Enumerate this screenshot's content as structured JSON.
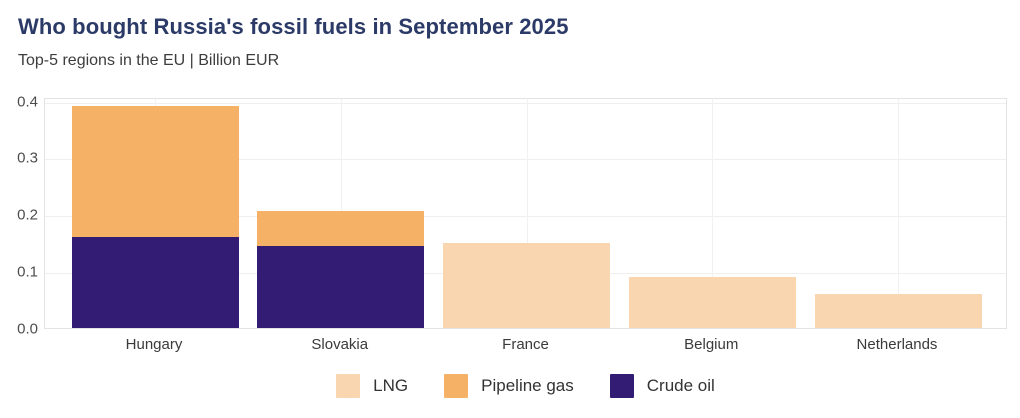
{
  "header": {
    "title": "Who bought Russia's fossil fuels in September 2025",
    "subtitle": "Top-5 regions in the EU | Billion EUR"
  },
  "chart_data": {
    "type": "bar",
    "stacked": true,
    "title": "Who bought Russia's fossil fuels in September 2025",
    "subtitle": "Top-5 regions in the EU | Billion EUR",
    "xlabel": "",
    "ylabel": "Billion EUR",
    "categories": [
      "Hungary",
      "Slovakia",
      "France",
      "Belgium",
      "Netherlands"
    ],
    "series": [
      {
        "name": "LNG",
        "color": "#F9D6B0",
        "values": [
          0,
          0,
          0.15,
          0.09,
          0.06
        ]
      },
      {
        "name": "Pipeline gas",
        "color": "#F5B266",
        "values": [
          0.23,
          0.06,
          0,
          0,
          0
        ]
      },
      {
        "name": "Crude oil",
        "color": "#321C74",
        "values": [
          0.16,
          0.145,
          0,
          0,
          0
        ]
      }
    ],
    "stack_order_bottom_to_top": [
      "Crude oil",
      "Pipeline gas",
      "LNG"
    ],
    "totals": [
      0.39,
      0.205,
      0.15,
      0.09,
      0.06
    ],
    "ylim": [
      0,
      0.4
    ],
    "yticks": [
      0.0,
      0.1,
      0.2,
      0.3,
      0.4
    ],
    "ytick_labels": [
      "0.0",
      "0.1",
      "0.2",
      "0.3",
      "0.4"
    ],
    "grid": true,
    "legend_position": "bottom-center"
  },
  "colors": {
    "background": "#ffffff",
    "title": "#2b3a67",
    "subtitle": "#3d3d3d",
    "axis_text": "#4d4d4d",
    "gridline": "#efefef",
    "plot_border": "#e3e3e3",
    "lng": "#F9D6B0",
    "pipeline_gas": "#F5B266",
    "crude_oil": "#321C74"
  }
}
